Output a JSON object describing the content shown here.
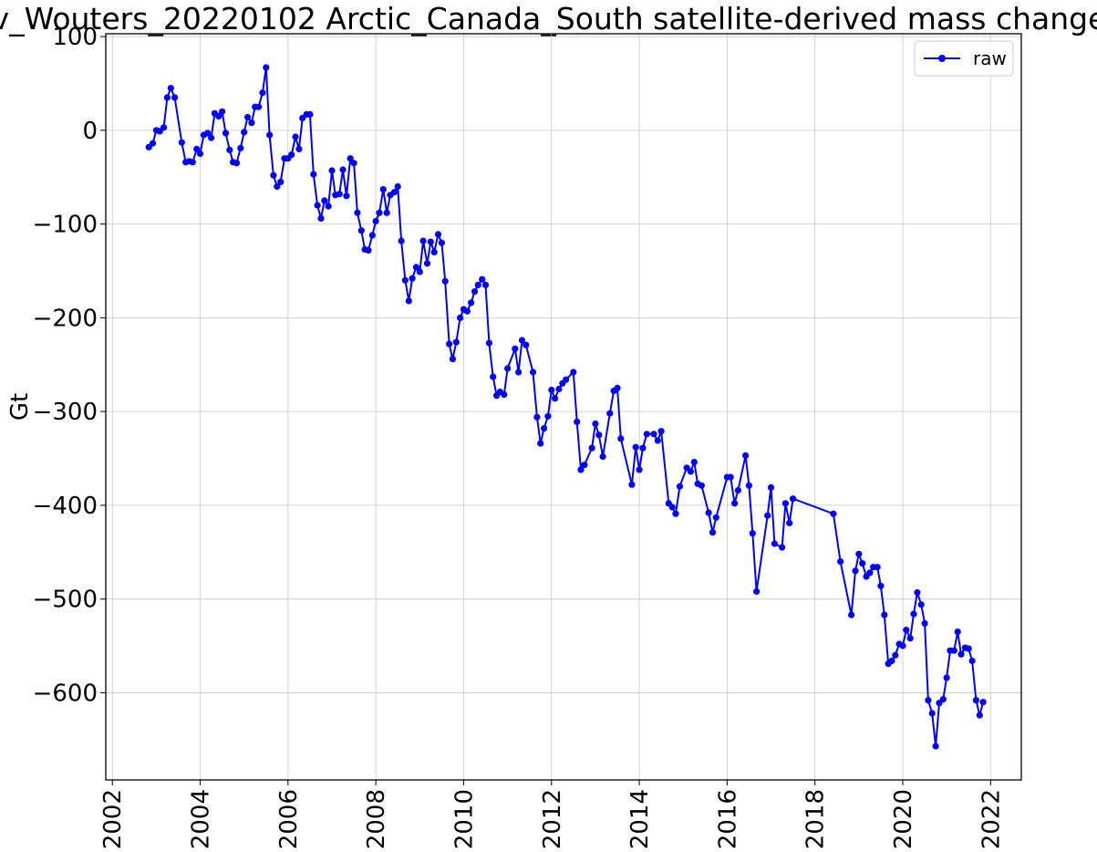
{
  "chart_data": {
    "type": "line",
    "title": "v_Wouters_20220102 Arctic_Canada_South satellite-derived mass change",
    "xlabel": "",
    "ylabel": "Gt",
    "xlim": [
      2001.85,
      2022.7
    ],
    "ylim": [
      -693,
      103
    ],
    "x_ticks": [
      2002,
      2004,
      2006,
      2008,
      2010,
      2012,
      2014,
      2016,
      2018,
      2020,
      2022
    ],
    "x_tick_labels": [
      "2002",
      "2004",
      "2006",
      "2008",
      "2010",
      "2012",
      "2014",
      "2016",
      "2018",
      "2020",
      "2022"
    ],
    "y_ticks": [
      100,
      0,
      -100,
      -200,
      -300,
      -400,
      -500,
      -600
    ],
    "y_tick_labels": [
      "100",
      "0",
      "−100",
      "−200",
      "−300",
      "−400",
      "−500",
      "−600"
    ],
    "grid": true,
    "legend_position": "top-right",
    "line_color": "#0000ff",
    "series": [
      {
        "name": "raw",
        "x": [
          2002.83,
          2002.92,
          2003.0,
          2003.08,
          2003.17,
          2003.25,
          2003.33,
          2003.42,
          2003.58,
          2003.67,
          2003.75,
          2003.83,
          2003.92,
          2004.0,
          2004.08,
          2004.17,
          2004.25,
          2004.33,
          2004.42,
          2004.5,
          2004.58,
          2004.67,
          2004.75,
          2004.83,
          2004.92,
          2005.0,
          2005.08,
          2005.17,
          2005.25,
          2005.33,
          2005.42,
          2005.5,
          2005.58,
          2005.67,
          2005.75,
          2005.83,
          2005.92,
          2006.0,
          2006.08,
          2006.17,
          2006.25,
          2006.33,
          2006.42,
          2006.5,
          2006.58,
          2006.67,
          2006.75,
          2006.83,
          2006.92,
          2007.0,
          2007.08,
          2007.17,
          2007.25,
          2007.33,
          2007.42,
          2007.5,
          2007.58,
          2007.67,
          2007.75,
          2007.83,
          2007.92,
          2008.0,
          2008.08,
          2008.17,
          2008.25,
          2008.33,
          2008.42,
          2008.5,
          2008.58,
          2008.67,
          2008.75,
          2008.83,
          2008.92,
          2009.0,
          2009.08,
          2009.17,
          2009.25,
          2009.33,
          2009.42,
          2009.5,
          2009.58,
          2009.67,
          2009.75,
          2009.83,
          2009.92,
          2010.0,
          2010.08,
          2010.17,
          2010.25,
          2010.33,
          2010.42,
          2010.5,
          2010.58,
          2010.67,
          2010.75,
          2010.83,
          2010.92,
          2011.0,
          2011.17,
          2011.25,
          2011.33,
          2011.42,
          2011.58,
          2011.67,
          2011.75,
          2011.83,
          2011.92,
          2012.0,
          2012.08,
          2012.17,
          2012.25,
          2012.33,
          2012.5,
          2012.58,
          2012.67,
          2012.75,
          2012.92,
          2013.0,
          2013.08,
          2013.17,
          2013.33,
          2013.42,
          2013.5,
          2013.58,
          2013.83,
          2013.92,
          2014.0,
          2014.08,
          2014.17,
          2014.33,
          2014.42,
          2014.5,
          2014.67,
          2014.75,
          2014.83,
          2014.92,
          2015.08,
          2015.17,
          2015.25,
          2015.33,
          2015.42,
          2015.58,
          2015.67,
          2015.75,
          2016.0,
          2016.08,
          2016.17,
          2016.25,
          2016.42,
          2016.5,
          2016.58,
          2016.67,
          2016.92,
          2017.0,
          2017.08,
          2017.25,
          2017.33,
          2017.42,
          2017.5,
          2018.42,
          2018.58,
          2018.83,
          2018.92,
          2019.0,
          2019.08,
          2019.17,
          2019.25,
          2019.33,
          2019.42,
          2019.5,
          2019.58,
          2019.67,
          2019.75,
          2019.83,
          2019.92,
          2020.0,
          2020.08,
          2020.17,
          2020.25,
          2020.33,
          2020.42,
          2020.5,
          2020.58,
          2020.67,
          2020.75,
          2020.83,
          2020.92,
          2021.0,
          2021.08,
          2021.17,
          2021.25,
          2021.33,
          2021.42,
          2021.5,
          2021.58,
          2021.67,
          2021.75,
          2021.83
        ],
        "y": [
          -18,
          -14,
          0,
          -1,
          3,
          35,
          45,
          35,
          -13,
          -34,
          -33,
          -34,
          -20,
          -25,
          -5,
          -3,
          -8,
          18,
          15,
          20,
          -3,
          -21,
          -34,
          -35,
          -19,
          -2,
          14,
          8,
          25,
          25,
          40,
          67,
          -5,
          -48,
          -60,
          -55,
          -30,
          -30,
          -26,
          -7,
          -20,
          13,
          17,
          17,
          -47,
          -80,
          -94,
          -75,
          -81,
          -43,
          -69,
          -68,
          -42,
          -70,
          -30,
          -35,
          -88,
          -107,
          -127,
          -128,
          -112,
          -97,
          -88,
          -63,
          -88,
          -69,
          -66,
          -60,
          -118,
          -160,
          -182,
          -158,
          -146,
          -151,
          -118,
          -142,
          -119,
          -130,
          -111,
          -120,
          -161,
          -228,
          -244,
          -226,
          -200,
          -191,
          -193,
          -184,
          -172,
          -165,
          -159,
          -165,
          -227,
          -263,
          -283,
          -279,
          -282,
          -254,
          -233,
          -258,
          -224,
          -229,
          -258,
          -306,
          -334,
          -318,
          -305,
          -277,
          -286,
          -276,
          -270,
          -266,
          -258,
          -311,
          -362,
          -357,
          -339,
          -313,
          -325,
          -348,
          -302,
          -278,
          -275,
          -329,
          -378,
          -338,
          -362,
          -339,
          -324,
          -324,
          -331,
          -321,
          -398,
          -402,
          -409,
          -380,
          -360,
          -364,
          -354,
          -377,
          -379,
          -408,
          -429,
          -413,
          -370,
          -370,
          -398,
          -384,
          -347,
          -379,
          -430,
          -492,
          -411,
          -381,
          -441,
          -445,
          -398,
          -419,
          -393,
          -409,
          -460,
          -517,
          -470,
          -452,
          -462,
          -476,
          -472,
          -466,
          -466,
          -486,
          -517,
          -569,
          -566,
          -560,
          -548,
          -550,
          -533,
          -542,
          -516,
          -493,
          -506,
          -526,
          -608,
          -622,
          -657,
          -611,
          -607,
          -584,
          -555,
          -555,
          -535,
          -559,
          -552,
          -553,
          -566,
          -608,
          -624,
          -610
        ]
      }
    ]
  }
}
